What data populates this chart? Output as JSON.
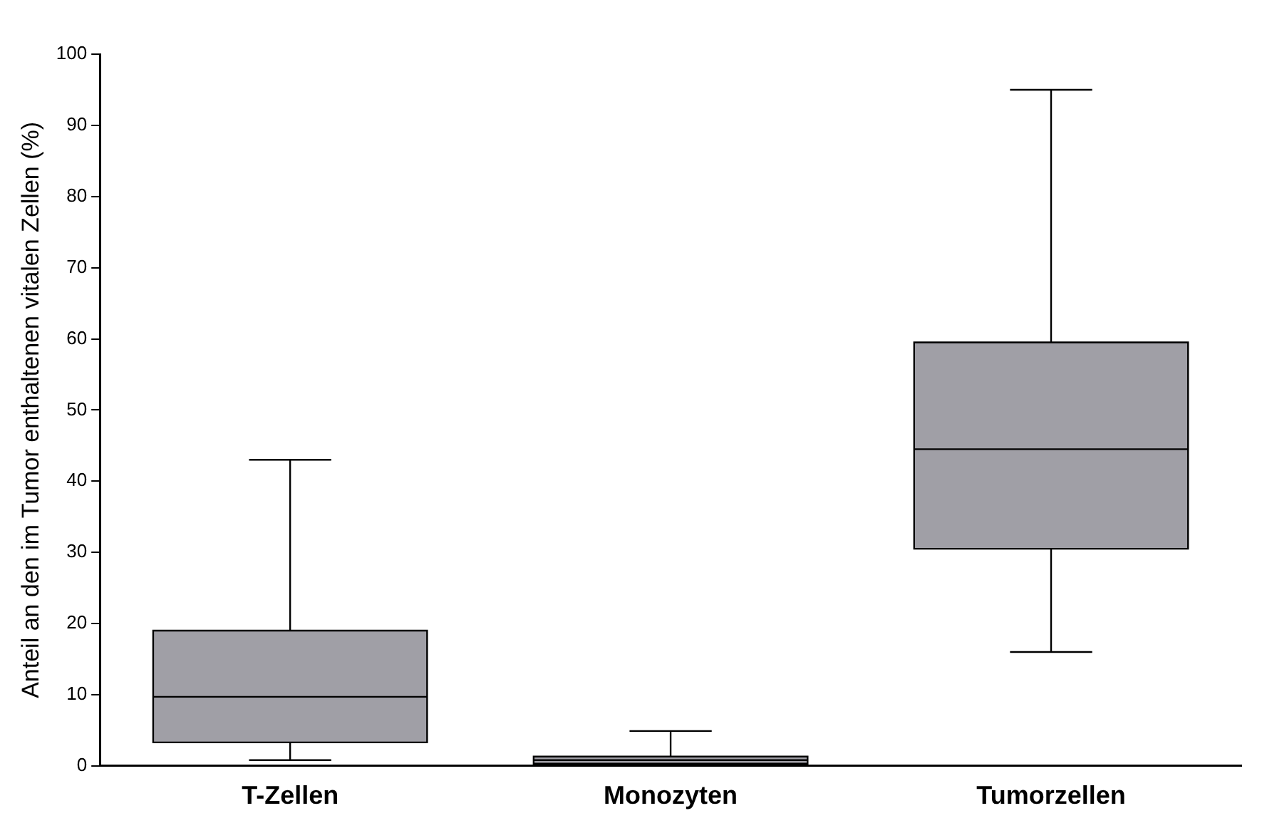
{
  "chart_data": {
    "type": "box",
    "ylabel": "Anteil an den im Tumor enthaltenen vitalen Zellen (%)",
    "categories": [
      "T-Zellen",
      "Monozyten",
      "Tumorzellen"
    ],
    "color": "#a09fa6",
    "ylim": [
      0,
      100
    ],
    "yticks": [
      0,
      10,
      20,
      30,
      40,
      50,
      60,
      70,
      80,
      90,
      100
    ],
    "grid": false,
    "legend": false,
    "boxes": [
      {
        "low": 0.8,
        "q1": 3.3,
        "median": 9.7,
        "q3": 19,
        "high": 43
      },
      {
        "low": 0.2,
        "q1": 0.3,
        "median": 0.8,
        "q3": 1.3,
        "high": 4.9
      },
      {
        "low": 16,
        "q1": 30.5,
        "median": 44.5,
        "q3": 59.5,
        "high": 95
      }
    ]
  }
}
